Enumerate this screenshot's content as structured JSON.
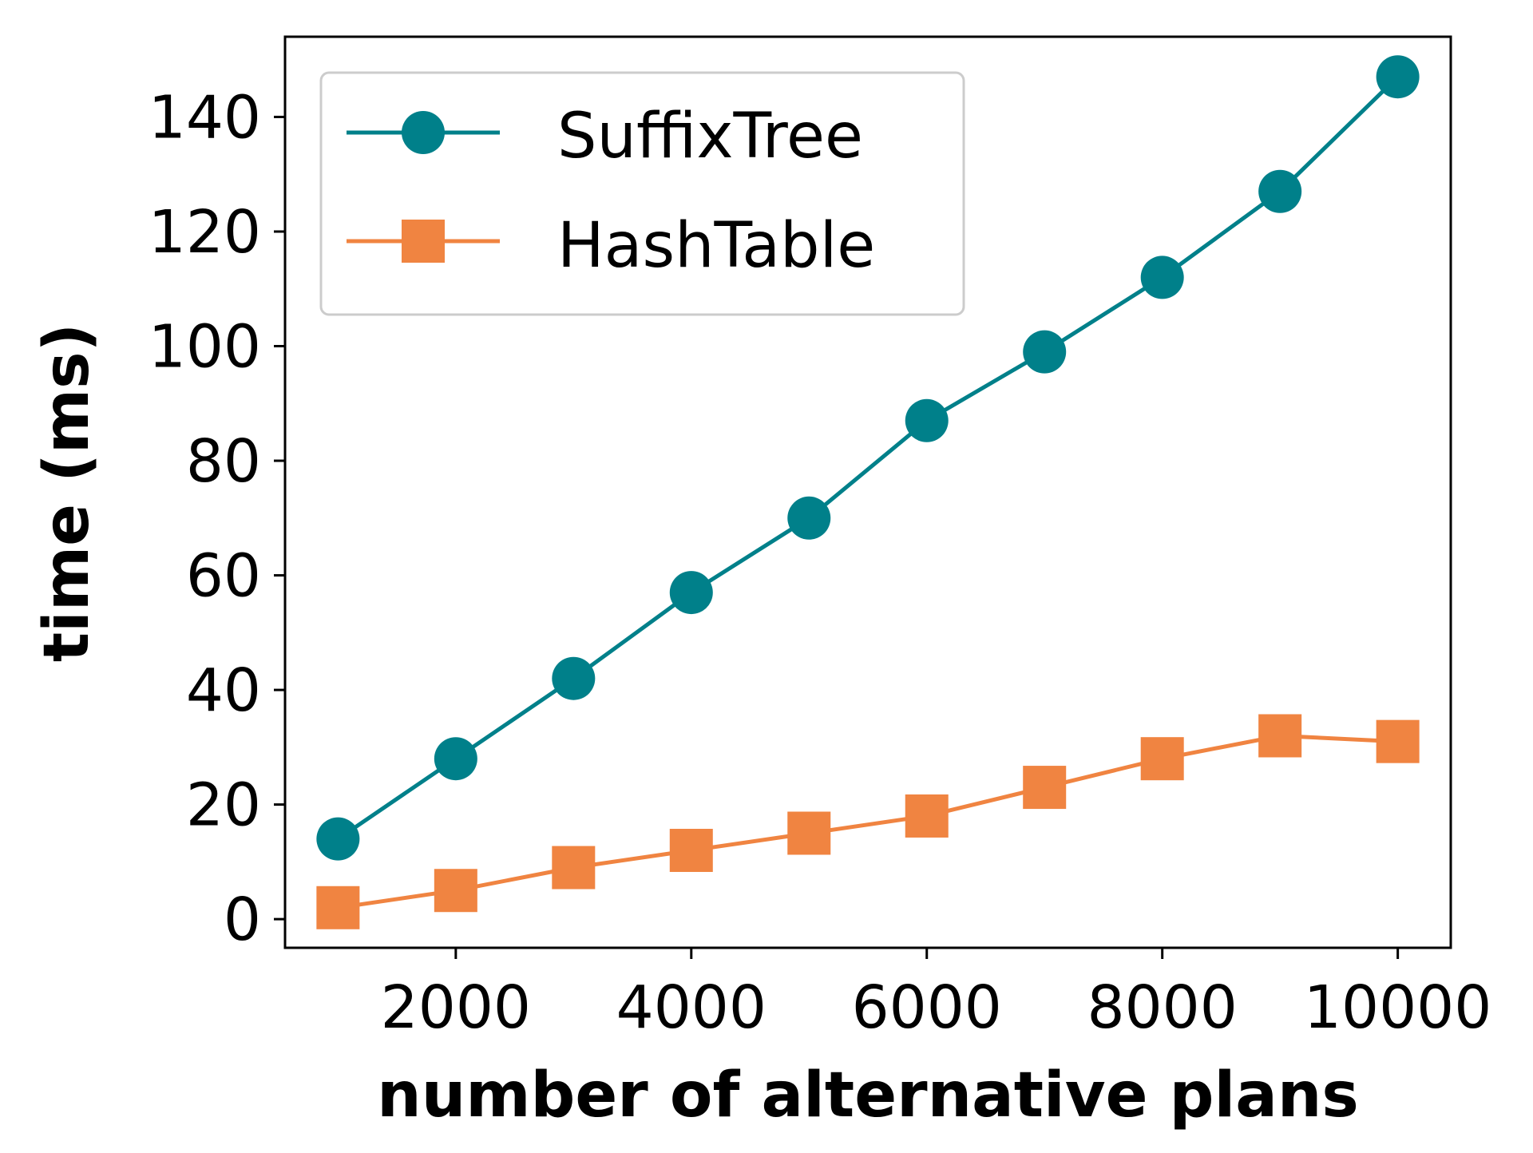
{
  "chart_data": {
    "type": "line",
    "title": "",
    "xlabel": "number of alternative plans",
    "ylabel": "time (ms)",
    "x": [
      1000,
      2000,
      3000,
      4000,
      5000,
      6000,
      7000,
      8000,
      9000,
      10000
    ],
    "xlim": [
      550,
      10450
    ],
    "ylim": [
      -5,
      154
    ],
    "xticks": [
      2000,
      4000,
      6000,
      8000,
      10000
    ],
    "yticks": [
      0,
      20,
      40,
      60,
      80,
      100,
      120,
      140
    ],
    "xtick_labels": [
      "2000",
      "4000",
      "6000",
      "8000",
      "10000"
    ],
    "ytick_labels": [
      "0",
      "20",
      "40",
      "60",
      "80",
      "100",
      "120",
      "140"
    ],
    "grid": false,
    "legend_position": "upper-left",
    "series": [
      {
        "name": "SuffixTree",
        "marker": "circle",
        "color": "#00808a",
        "values": [
          14,
          28,
          42,
          57,
          70,
          87,
          99,
          112,
          127,
          147
        ]
      },
      {
        "name": "HashTable",
        "marker": "square",
        "color": "#f08441",
        "values": [
          2,
          5,
          9,
          12,
          15,
          18,
          23,
          28,
          32,
          31
        ]
      }
    ]
  }
}
